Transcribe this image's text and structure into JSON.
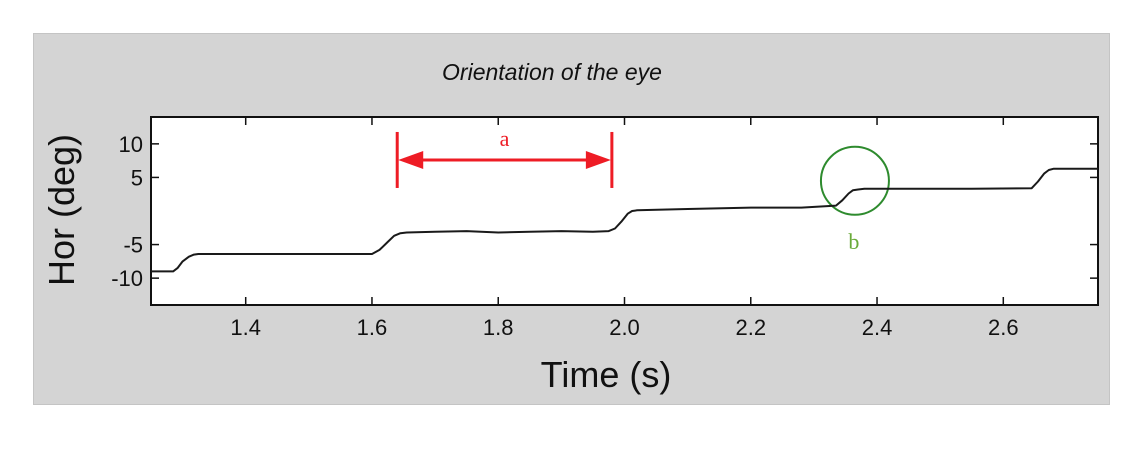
{
  "chart_data": {
    "type": "line",
    "title": "Orientation of the eye",
    "xlabel": "Time (s)",
    "ylabel": "Hor (deg)",
    "xlim": [
      1.25,
      2.75
    ],
    "ylim": [
      -14,
      14
    ],
    "xticks": [
      1.4,
      1.6,
      1.8,
      2.0,
      2.2,
      2.4,
      2.6
    ],
    "xtick_labels": [
      "1.4",
      "1.6",
      "1.8",
      "2.0",
      "2.2",
      "2.4",
      "2.6"
    ],
    "yticks": [
      10,
      5,
      -5,
      -10
    ],
    "ytick_labels": [
      "10",
      "5",
      "-5",
      "-10"
    ],
    "grid": false,
    "series": [
      {
        "color": "#1a1a1a",
        "x": [
          1.25,
          1.285,
          1.292,
          1.3,
          1.31,
          1.318,
          1.325,
          1.6,
          1.612,
          1.625,
          1.635,
          1.645,
          1.655,
          1.7,
          1.75,
          1.8,
          1.85,
          1.9,
          1.95,
          1.975,
          1.985,
          1.995,
          2.005,
          2.012,
          2.02,
          2.1,
          2.2,
          2.28,
          2.335,
          2.345,
          2.355,
          2.362,
          2.37,
          2.38,
          2.45,
          2.55,
          2.645,
          2.655,
          2.665,
          2.672,
          2.68,
          2.7,
          2.75
        ],
        "y": [
          -9.0,
          -9.0,
          -8.5,
          -7.5,
          -6.8,
          -6.5,
          -6.4,
          -6.4,
          -5.8,
          -4.6,
          -3.7,
          -3.3,
          -3.2,
          -3.1,
          -3.0,
          -3.2,
          -3.1,
          -3.0,
          -3.1,
          -3.0,
          -2.6,
          -1.6,
          -0.4,
          0.0,
          0.1,
          0.3,
          0.5,
          0.5,
          0.8,
          1.6,
          2.6,
          3.1,
          3.2,
          3.3,
          3.3,
          3.3,
          3.4,
          4.4,
          5.6,
          6.1,
          6.3,
          6.3,
          6.3
        ]
      }
    ],
    "annotations": [
      {
        "type": "interval",
        "label": "a",
        "color": "#ee1c25",
        "x_start": 1.64,
        "x_end": 1.98,
        "y": 7.6
      },
      {
        "type": "circle",
        "label": "b",
        "color": "#2e8b2e",
        "label_color": "#6aaa3a",
        "x": 2.365,
        "y": 4.5
      }
    ]
  }
}
